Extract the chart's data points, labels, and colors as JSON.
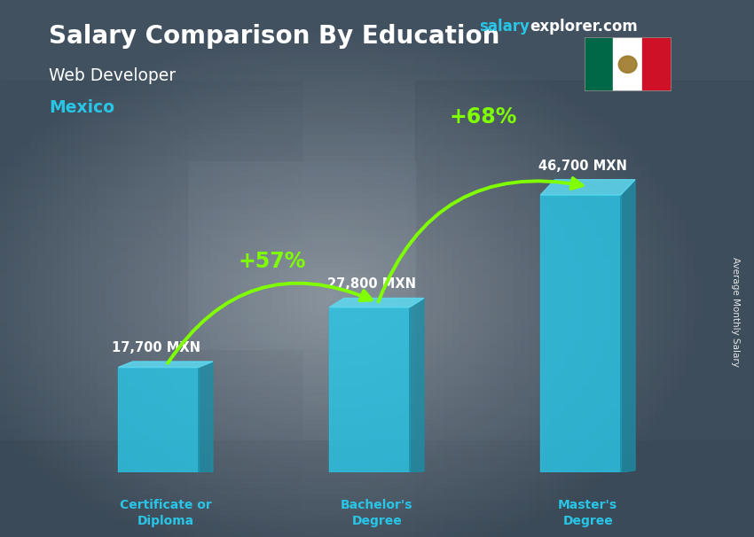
{
  "title": "Salary Comparison By Education",
  "subtitle": "Web Developer",
  "location": "Mexico",
  "categories": [
    "Certificate or\nDiploma",
    "Bachelor's\nDegree",
    "Master's\nDegree"
  ],
  "values": [
    17700,
    27800,
    46700
  ],
  "value_labels": [
    "17,700 MXN",
    "27,800 MXN",
    "46,700 MXN"
  ],
  "pct_changes": [
    "+57%",
    "+68%"
  ],
  "bar_face_color": "#29c5e6",
  "bar_top_color": "#5dd8f0",
  "bar_side_color": "#1a8fa8",
  "bar_alpha": 0.82,
  "bar_width": 0.38,
  "bg_color": "#4a5568",
  "title_color": "#ffffff",
  "subtitle_color": "#ffffff",
  "location_color": "#29c5e6",
  "value_label_color": "#ffffff",
  "category_color": "#29c5e6",
  "pct_color": "#7fff00",
  "arrow_color": "#7fff00",
  "site_salary_color": "#29c5e6",
  "site_explorer_color": "#ffffff",
  "ylabel": "Average Monthly Salary",
  "ymax": 56000,
  "flag_green": "#006847",
  "flag_white": "#ffffff",
  "flag_red": "#ce1126"
}
